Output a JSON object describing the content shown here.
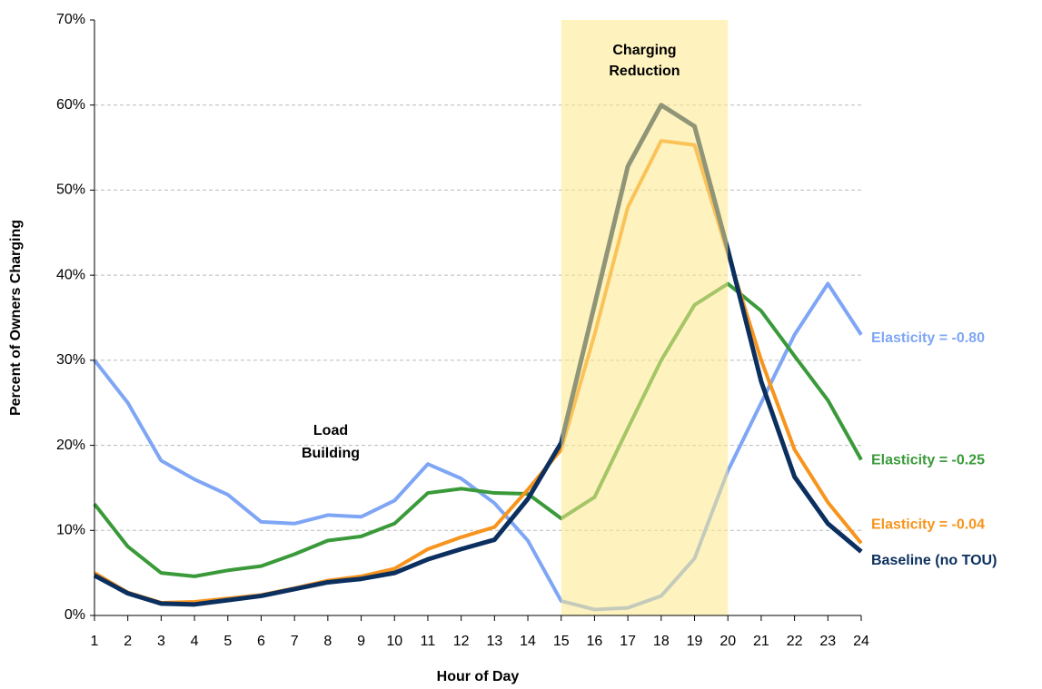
{
  "chart_data": {
    "type": "line",
    "x_label": "Hour of Day",
    "y_label": "Percent of Owners Charging",
    "x": [
      1,
      2,
      3,
      4,
      5,
      6,
      7,
      8,
      9,
      10,
      11,
      12,
      13,
      14,
      15,
      16,
      17,
      18,
      19,
      20,
      21,
      22,
      23,
      24
    ],
    "xlim": [
      1,
      24
    ],
    "xticks": [
      1,
      2,
      3,
      4,
      5,
      6,
      7,
      8,
      9,
      10,
      11,
      12,
      13,
      14,
      15,
      16,
      17,
      18,
      19,
      20,
      21,
      22,
      23,
      24
    ],
    "ylim": [
      0,
      70
    ],
    "yticks": [
      {
        "value": 0,
        "label": "0%"
      },
      {
        "value": 10,
        "label": "10%"
      },
      {
        "value": 20,
        "label": "20%"
      },
      {
        "value": 30,
        "label": "30%"
      },
      {
        "value": 40,
        "label": "40%"
      },
      {
        "value": 50,
        "label": "50%"
      },
      {
        "value": 60,
        "label": "60%"
      },
      {
        "value": 70,
        "label": "70%"
      }
    ],
    "grid": true,
    "highlight": {
      "from": 15,
      "to": 20,
      "color": "#fde98a",
      "label": [
        "Charging",
        "Reduction"
      ]
    },
    "annotation": [
      "Load",
      "Building"
    ],
    "series": [
      {
        "name": "Elasticity = -0.80",
        "color": "#7fa6f5",
        "values": [
          30,
          25,
          18.2,
          16,
          14.2,
          11,
          10.8,
          11.8,
          11.6,
          13.5,
          17.8,
          16.1,
          13.2,
          8.8,
          1.7,
          0.7,
          0.9,
          2.3,
          6.7,
          17,
          25,
          33,
          39,
          33
        ]
      },
      {
        "name": "Elasticity = -0.25",
        "color": "#3a9a3a",
        "values": [
          13.1,
          8.1,
          5.0,
          4.6,
          5.3,
          5.8,
          7.2,
          8.8,
          9.3,
          10.8,
          14.4,
          14.9,
          14.4,
          14.3,
          11.4,
          13.9,
          22,
          30,
          36.5,
          39,
          35.8,
          30.5,
          25.3,
          18.3
        ]
      },
      {
        "name": "Elasticity = -0.04",
        "color": "#f7941d",
        "values": [
          5.0,
          2.7,
          1.5,
          1.6,
          2.0,
          2.4,
          3.2,
          4.1,
          4.6,
          5.5,
          7.8,
          9.2,
          10.4,
          14.8,
          19.5,
          33,
          48,
          55.8,
          55.3,
          42.5,
          30,
          19.5,
          13.3,
          8.5
        ]
      },
      {
        "name": "Baseline (no TOU)",
        "color": "#0b2f5e",
        "values": [
          4.7,
          2.6,
          1.4,
          1.3,
          1.8,
          2.3,
          3.1,
          3.9,
          4.3,
          5.0,
          6.6,
          7.8,
          8.9,
          13.7,
          20.3,
          36.5,
          52.8,
          60,
          57.5,
          43,
          27.5,
          16.3,
          10.8,
          7.5
        ]
      }
    ]
  }
}
